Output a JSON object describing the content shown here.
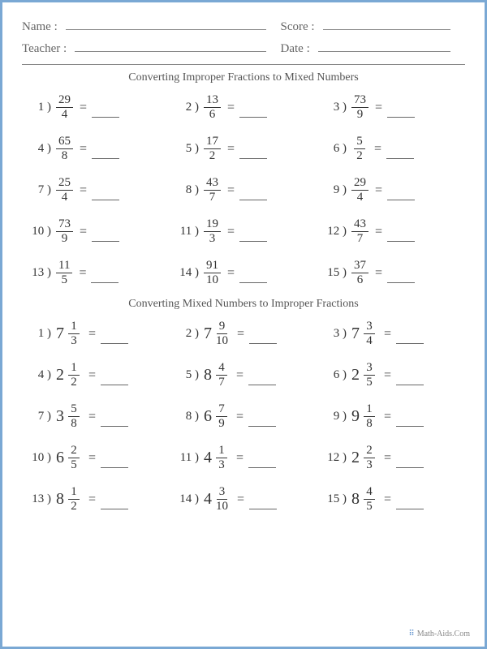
{
  "colors": {
    "border": "#7aa8d4",
    "text": "#444",
    "line": "#888",
    "accent": "#5b8fcc"
  },
  "header": {
    "name_label": "Name :",
    "teacher_label": "Teacher :",
    "score_label": "Score :",
    "date_label": "Date :"
  },
  "section1": {
    "title": "Converting Improper Fractions to Mixed Numbers",
    "problems": [
      {
        "n": "1",
        "num": "29",
        "den": "4"
      },
      {
        "n": "2",
        "num": "13",
        "den": "6"
      },
      {
        "n": "3",
        "num": "73",
        "den": "9"
      },
      {
        "n": "4",
        "num": "65",
        "den": "8"
      },
      {
        "n": "5",
        "num": "17",
        "den": "2"
      },
      {
        "n": "6",
        "num": "5",
        "den": "2"
      },
      {
        "n": "7",
        "num": "25",
        "den": "4"
      },
      {
        "n": "8",
        "num": "43",
        "den": "7"
      },
      {
        "n": "9",
        "num": "29",
        "den": "4"
      },
      {
        "n": "10",
        "num": "73",
        "den": "9"
      },
      {
        "n": "11",
        "num": "19",
        "den": "3"
      },
      {
        "n": "12",
        "num": "43",
        "den": "7"
      },
      {
        "n": "13",
        "num": "11",
        "den": "5"
      },
      {
        "n": "14",
        "num": "91",
        "den": "10"
      },
      {
        "n": "15",
        "num": "37",
        "den": "6"
      }
    ]
  },
  "section2": {
    "title": "Converting Mixed Numbers to Improper Fractions",
    "problems": [
      {
        "n": "1",
        "whole": "7",
        "num": "1",
        "den": "3"
      },
      {
        "n": "2",
        "whole": "7",
        "num": "9",
        "den": "10"
      },
      {
        "n": "3",
        "whole": "7",
        "num": "3",
        "den": "4"
      },
      {
        "n": "4",
        "whole": "2",
        "num": "1",
        "den": "2"
      },
      {
        "n": "5",
        "whole": "8",
        "num": "4",
        "den": "7"
      },
      {
        "n": "6",
        "whole": "2",
        "num": "3",
        "den": "5"
      },
      {
        "n": "7",
        "whole": "3",
        "num": "5",
        "den": "8"
      },
      {
        "n": "8",
        "whole": "6",
        "num": "7",
        "den": "9"
      },
      {
        "n": "9",
        "whole": "9",
        "num": "1",
        "den": "8"
      },
      {
        "n": "10",
        "whole": "6",
        "num": "2",
        "den": "5"
      },
      {
        "n": "11",
        "whole": "4",
        "num": "1",
        "den": "3"
      },
      {
        "n": "12",
        "whole": "2",
        "num": "2",
        "den": "3"
      },
      {
        "n": "13",
        "whole": "8",
        "num": "1",
        "den": "2"
      },
      {
        "n": "14",
        "whole": "4",
        "num": "3",
        "den": "10"
      },
      {
        "n": "15",
        "whole": "8",
        "num": "4",
        "den": "5"
      }
    ]
  },
  "footer": {
    "text": "Math-Aids.Com",
    "dots": "⠿"
  },
  "equals_sign": "="
}
